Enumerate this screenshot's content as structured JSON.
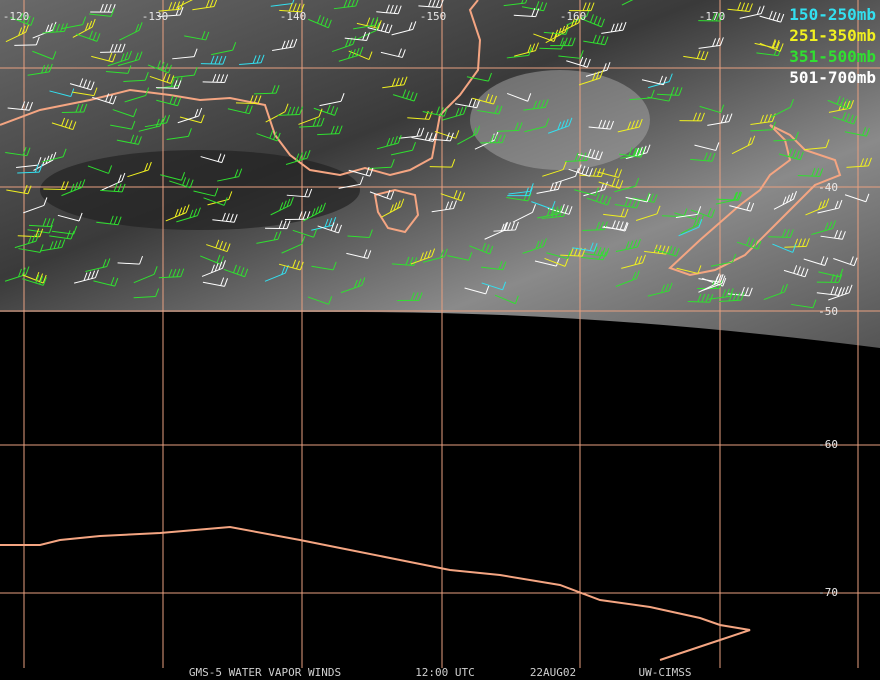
{
  "grid": {
    "lon_labels": [
      "-120",
      "-130",
      "-140",
      "-150",
      "-160",
      "-170"
    ],
    "lat_labels": [
      "-40",
      "-50",
      "-60",
      "-70"
    ]
  },
  "legend": [
    "150-250mb",
    "251-350mb",
    "351-500mb",
    "501-700mb"
  ],
  "footer": [
    "GMS-5 WATER VAPOR WINDS",
    "12:00 UTC",
    "22AUG02",
    "UW-CIMSS"
  ]
}
